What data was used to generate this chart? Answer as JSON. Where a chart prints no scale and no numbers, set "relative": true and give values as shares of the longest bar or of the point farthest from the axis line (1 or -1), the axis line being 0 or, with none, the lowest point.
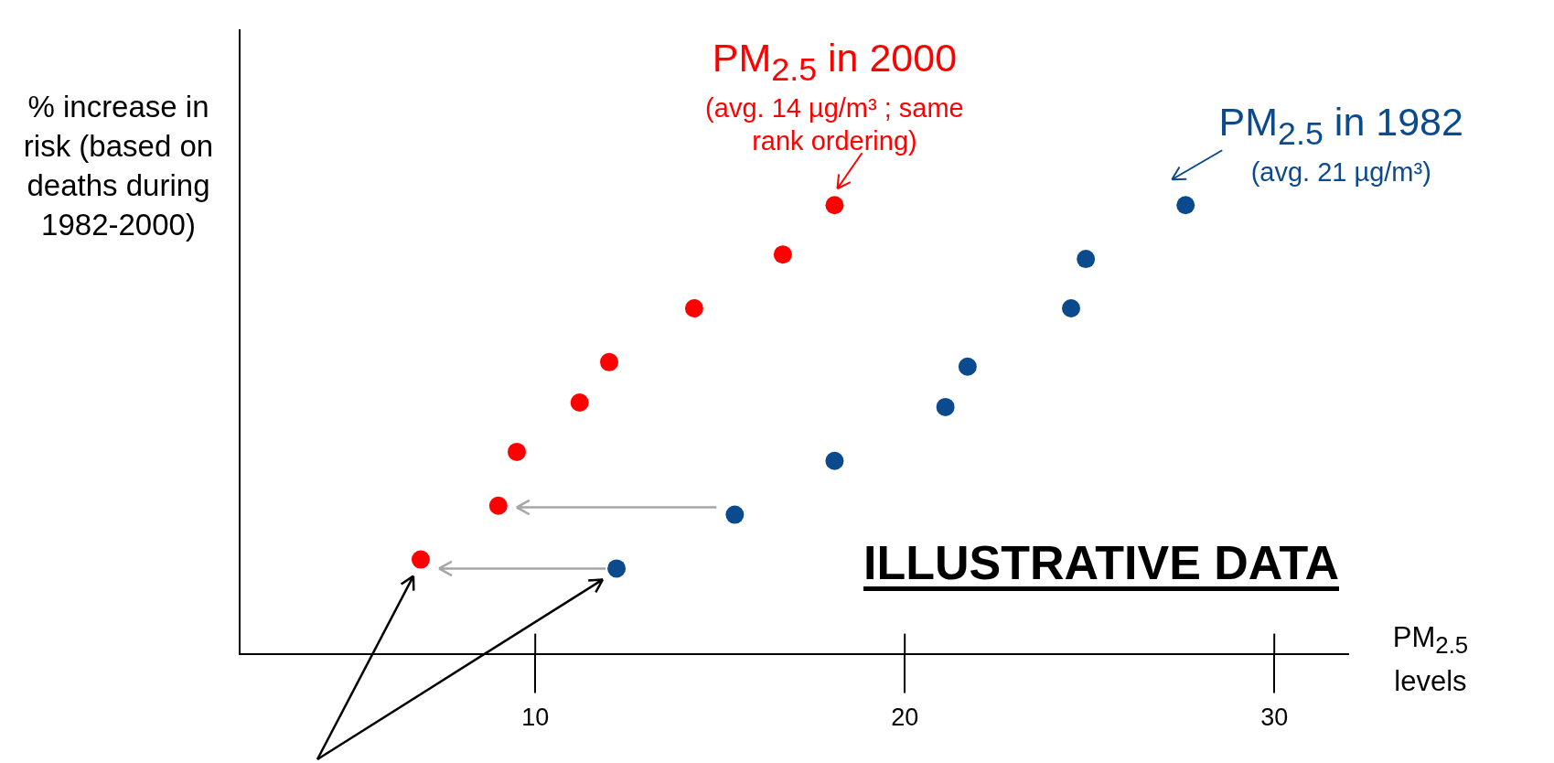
{
  "chart_data": {
    "type": "scatter",
    "xlabel": "PM$_{2.5}$ levels",
    "ylabel": "% increase in risk (based on deaths during 1982-2000)",
    "xlim": [
      2,
      32
    ],
    "xticks": [
      10,
      20,
      30
    ],
    "relative": true,
    "grid": false,
    "legend": false,
    "marker": "circle",
    "series": [
      {
        "name": "PM$_{2.5}$ in 2000",
        "color": "#ff0000",
        "x": [
          6.9,
          9.0,
          9.5,
          11.2,
          12.0,
          14.3,
          16.7,
          18.1
        ],
        "values": [
          0.21,
          0.33,
          0.45,
          0.56,
          0.65,
          0.77,
          0.89,
          1.0
        ]
      },
      {
        "name": "PM$_{2.5}$ in 1982",
        "color": "#0b4a8c",
        "x": [
          12.2,
          15.4,
          18.1,
          21.1,
          21.7,
          24.5,
          24.9,
          27.6
        ],
        "values": [
          0.19,
          0.31,
          0.43,
          0.55,
          0.64,
          0.77,
          0.88,
          1.0
        ]
      }
    ],
    "annotations": [
      "(avg. 14 µg/m³ ; same rank ordering)",
      "(avg. 21 µg/m³)",
      "ILLUSTRATIVE DATA"
    ]
  }
}
